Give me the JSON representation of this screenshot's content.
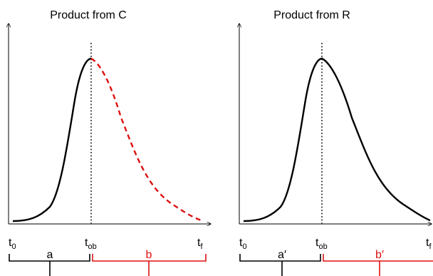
{
  "colors": {
    "black": "#000000",
    "red": "#dd1111",
    "dotted": "#444444"
  },
  "panels": [
    {
      "title": "Product from C",
      "marks": {
        "t0": {
          "main": "t",
          "sub": "0"
        },
        "tob": {
          "main": "t",
          "sub": "ob"
        },
        "tf": {
          "main": "t",
          "sub": "f"
        }
      },
      "segments": {
        "left": "a",
        "right": "b"
      },
      "after_peak_style": "red-dashed"
    },
    {
      "title": "Product from R",
      "marks": {
        "t0": {
          "main": "t",
          "sub": "0"
        },
        "tob": {
          "main": "t",
          "sub": "ob"
        },
        "tf": {
          "main": "t",
          "sub": "f"
        }
      },
      "segments": {
        "left": "a′",
        "right": "b′"
      },
      "after_peak_style": "black-solid"
    }
  ]
}
